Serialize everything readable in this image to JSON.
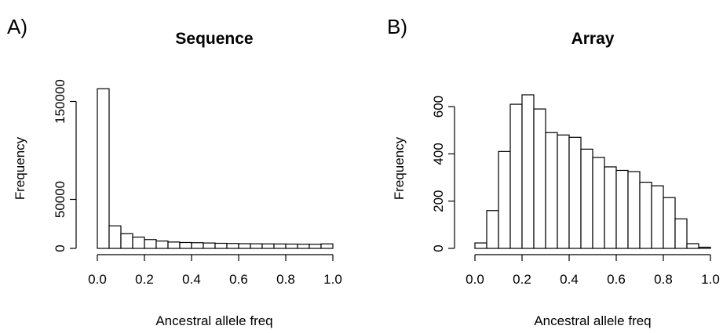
{
  "chart_data": [
    {
      "panel_label": "A)",
      "type": "bar",
      "title": "Sequence",
      "xlabel": "Ancestral allele freq",
      "ylabel": "Frequency",
      "bin_edges": [
        0.0,
        0.05,
        0.1,
        0.15,
        0.2,
        0.25,
        0.3,
        0.35,
        0.4,
        0.45,
        0.5,
        0.55,
        0.6,
        0.65,
        0.7,
        0.75,
        0.8,
        0.85,
        0.9,
        0.95,
        1.0
      ],
      "values": [
        163000,
        23000,
        15000,
        11500,
        9000,
        7500,
        6500,
        6000,
        5800,
        5500,
        5200,
        5000,
        4800,
        4700,
        4600,
        4500,
        4400,
        4300,
        4200,
        4600
      ],
      "xlim": [
        0,
        1
      ],
      "ylim": [
        0,
        160000
      ],
      "x_ticks": [
        0,
        0.2,
        0.4,
        0.6,
        0.8,
        1
      ],
      "x_tick_labels": [
        "0.0",
        "0.2",
        "0.4",
        "0.6",
        "0.8",
        "1.0"
      ],
      "y_ticks": [
        0,
        50000,
        150000
      ],
      "y_tick_labels": [
        "0",
        "50000",
        "150000"
      ],
      "grid": false
    },
    {
      "panel_label": "B)",
      "type": "bar",
      "title": "Array",
      "xlabel": "Ancestral allele freq",
      "ylabel": "Frequency",
      "bin_edges": [
        0.0,
        0.05,
        0.1,
        0.15,
        0.2,
        0.25,
        0.3,
        0.35,
        0.4,
        0.45,
        0.5,
        0.55,
        0.6,
        0.65,
        0.7,
        0.75,
        0.8,
        0.85,
        0.9,
        0.95,
        1.0
      ],
      "values": [
        23,
        160,
        410,
        610,
        650,
        590,
        490,
        480,
        470,
        420,
        385,
        345,
        330,
        325,
        280,
        265,
        215,
        125,
        20,
        5
      ],
      "xlim": [
        0,
        1
      ],
      "ylim": [
        0,
        650
      ],
      "x_ticks": [
        0,
        0.2,
        0.4,
        0.6,
        0.8,
        1
      ],
      "x_tick_labels": [
        "0.0",
        "0.2",
        "0.4",
        "0.6",
        "0.8",
        "1.0"
      ],
      "y_ticks": [
        0,
        200,
        400,
        600
      ],
      "y_tick_labels": [
        "0",
        "200",
        "400",
        "600"
      ],
      "grid": false
    }
  ]
}
